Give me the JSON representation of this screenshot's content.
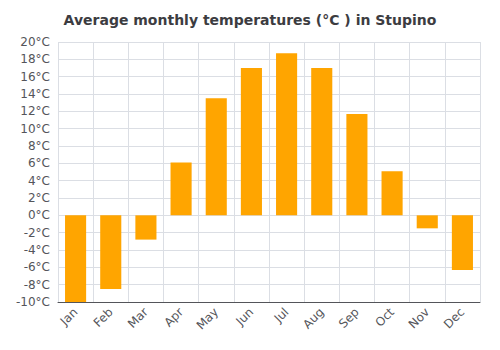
{
  "chart_data": {
    "type": "bar",
    "title": "Average monthly temperatures (°C ) in Stupino",
    "categories": [
      "Jan",
      "Feb",
      "Mar",
      "Apr",
      "May",
      "Jun",
      "Jul",
      "Aug",
      "Sep",
      "Oct",
      "Nov",
      "Dec"
    ],
    "values": [
      -10,
      -8.5,
      -2.8,
      6.1,
      13.5,
      17.0,
      18.7,
      17.0,
      11.7,
      5.1,
      -1.5,
      -6.3
    ],
    "color": "#FFA500",
    "ylim": [
      -10,
      20
    ],
    "yticks": [
      {
        "value": -10,
        "label": "-10°C"
      },
      {
        "value": -8,
        "label": "-8°C"
      },
      {
        "value": -6,
        "label": "-6°C"
      },
      {
        "value": -4,
        "label": "-4°C"
      },
      {
        "value": -2,
        "label": "-2°C"
      },
      {
        "value": 0,
        "label": "0°C"
      },
      {
        "value": 2,
        "label": "2°C"
      },
      {
        "value": 4,
        "label": "4°C"
      },
      {
        "value": 6,
        "label": "6°C"
      },
      {
        "value": 8,
        "label": "8°C"
      },
      {
        "value": 10,
        "label": "10°C"
      },
      {
        "value": 12,
        "label": "12°C"
      },
      {
        "value": 14,
        "label": "14°C"
      },
      {
        "value": 16,
        "label": "16°C"
      },
      {
        "value": 18,
        "label": "18°C"
      },
      {
        "value": 20,
        "label": "20°C"
      }
    ],
    "grid": true
  }
}
